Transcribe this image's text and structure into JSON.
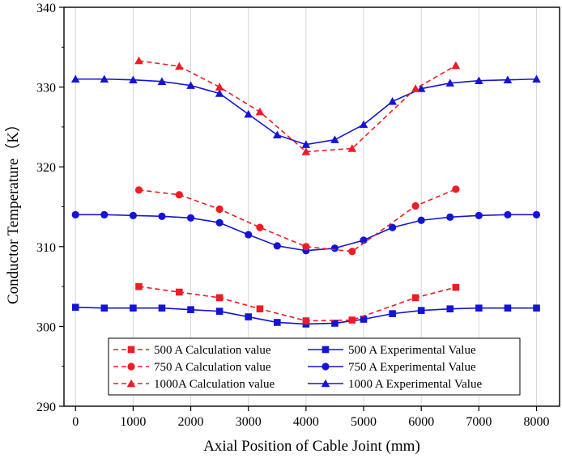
{
  "chart_data": {
    "type": "line",
    "title": "",
    "xlabel": "Axial Position of Cable Joint (mm)",
    "ylabel": "Conductor Temperature（K）",
    "xlim": [
      -200,
      8400
    ],
    "ylim": [
      290,
      340
    ],
    "xticks": [
      0,
      1000,
      2000,
      3000,
      4000,
      5000,
      6000,
      7000,
      8000
    ],
    "yticks": [
      290,
      300,
      310,
      320,
      330,
      340
    ],
    "grid": "vertical",
    "legend": "bottom-center",
    "series": [
      {
        "name": "500 A  Calculation value",
        "color": "#ee1c24",
        "marker": "square",
        "line": "dashed",
        "x": [
          1100,
          1800,
          2500,
          3200,
          4000,
          4800,
          5900,
          6600
        ],
        "y": [
          305.0,
          304.3,
          303.6,
          302.2,
          300.7,
          300.8,
          303.6,
          304.9
        ]
      },
      {
        "name": "750 A  Calculation value",
        "color": "#ee1c24",
        "marker": "circle",
        "line": "dashed",
        "x": [
          1100,
          1800,
          2500,
          3200,
          4000,
          4800,
          5900,
          6600
        ],
        "y": [
          317.1,
          316.5,
          314.7,
          312.4,
          310.0,
          309.4,
          315.1,
          317.2
        ]
      },
      {
        "name": "1000A  Calculation value",
        "color": "#ee1c24",
        "marker": "triangle",
        "line": "dashed",
        "x": [
          1100,
          1800,
          2500,
          3200,
          4000,
          4800,
          5900,
          6600
        ],
        "y": [
          333.3,
          332.6,
          330.0,
          326.9,
          321.9,
          322.3,
          329.8,
          332.7
        ]
      },
      {
        "name": "500 A  Experimental Value",
        "color": "#1414d8",
        "marker": "square",
        "line": "solid",
        "x": [
          0,
          500,
          1000,
          1500,
          2000,
          2500,
          3000,
          3500,
          4000,
          4500,
          5000,
          5500,
          6000,
          6500,
          7000,
          7500,
          8000
        ],
        "y": [
          302.4,
          302.3,
          302.3,
          302.3,
          302.1,
          301.9,
          301.2,
          300.5,
          300.3,
          300.4,
          300.9,
          301.6,
          302.0,
          302.2,
          302.3,
          302.3,
          302.3
        ]
      },
      {
        "name": "750 A  Experimental Value",
        "color": "#1414d8",
        "marker": "circle",
        "line": "solid",
        "x": [
          0,
          500,
          1000,
          1500,
          2000,
          2500,
          3000,
          3500,
          4000,
          4500,
          5000,
          5500,
          6000,
          6500,
          7000,
          7500,
          8000
        ],
        "y": [
          314.0,
          314.0,
          313.9,
          313.8,
          313.6,
          313.0,
          311.5,
          310.1,
          309.5,
          309.8,
          310.8,
          312.4,
          313.3,
          313.7,
          313.9,
          314.0,
          314.0
        ]
      },
      {
        "name": "1000 A  Experimental Value",
        "color": "#1414d8",
        "marker": "triangle",
        "line": "solid",
        "x": [
          0,
          500,
          1000,
          1500,
          2000,
          2500,
          3000,
          3500,
          4000,
          4500,
          5000,
          5500,
          6000,
          6500,
          7000,
          7500,
          8000
        ],
        "y": [
          331.0,
          331.0,
          330.9,
          330.7,
          330.2,
          329.2,
          326.6,
          324.0,
          322.8,
          323.4,
          325.3,
          328.2,
          329.8,
          330.5,
          330.8,
          330.9,
          331.0
        ]
      }
    ]
  }
}
